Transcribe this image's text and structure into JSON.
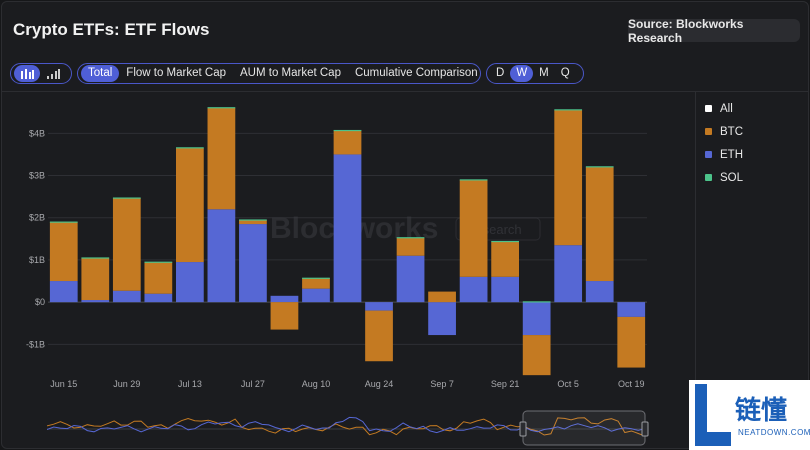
{
  "header": {
    "title": "Crypto ETFs: ETF Flows",
    "source_label": "Source: Blockworks Research"
  },
  "toolbar": {
    "view_tabs": [
      "Total",
      "Flow to Market Cap",
      "AUM to Market Cap",
      "Cumulative Comparison"
    ],
    "active_view": "Total",
    "period_tabs": [
      "D",
      "W",
      "M",
      "Q"
    ],
    "active_period": "W",
    "chart_icons": [
      "bar-chart-icon",
      "signal-bars-icon"
    ]
  },
  "watermark": {
    "brand": "Blockworks",
    "sub": "Research"
  },
  "badge": {
    "cn": "链懂",
    "en": "NEATDOWN.COM",
    "mark": "L"
  },
  "colors": {
    "btc": "#c47a22",
    "eth": "#5667d4",
    "sol": "#4cc38a",
    "all": "#ffffff"
  },
  "chart_data": {
    "type": "bar",
    "stacked": true,
    "title": "",
    "xlabel": "",
    "ylabel": "",
    "ylim": [
      -1.75,
      4.6
    ],
    "yticks": [
      -1,
      0,
      1,
      2,
      3,
      4
    ],
    "ytick_labels": [
      "-$1B",
      "$0",
      "$1B",
      "$2B",
      "$3B",
      "$4B"
    ],
    "xtick_labels": [
      "Jun 15",
      "Jun 29",
      "Jul 13",
      "Jul 27",
      "Aug 10",
      "Aug 24",
      "Sep 7",
      "Sep 21",
      "Oct 5",
      "Oct 19"
    ],
    "legend": [
      "All",
      "BTC",
      "ETH",
      "SOL"
    ],
    "legend_position": "right",
    "series": [
      {
        "name": "ETH",
        "values": [
          0.5,
          0.05,
          0.27,
          0.2,
          0.95,
          2.2,
          1.85,
          0.15,
          0.32,
          3.5,
          -0.2,
          1.1,
          -0.78,
          0.6,
          0.6,
          -0.78,
          1.35,
          0.5,
          -0.35
        ]
      },
      {
        "name": "BTC",
        "values": [
          1.4,
          1.0,
          2.2,
          0.75,
          2.7,
          2.4,
          0.1,
          -0.65,
          0.25,
          0.57,
          -1.2,
          0.42,
          0.25,
          2.3,
          0.83,
          -0.95,
          3.2,
          2.7,
          -1.2
        ]
      },
      {
        "name": "SOL",
        "values": [
          0.01,
          0.01,
          0.01,
          0.01,
          0.02,
          0.02,
          0.01,
          0.0,
          0.01,
          0.01,
          0.0,
          0.02,
          0.0,
          0.01,
          0.02,
          0.02,
          0.02,
          0.02,
          0.0
        ]
      }
    ]
  }
}
